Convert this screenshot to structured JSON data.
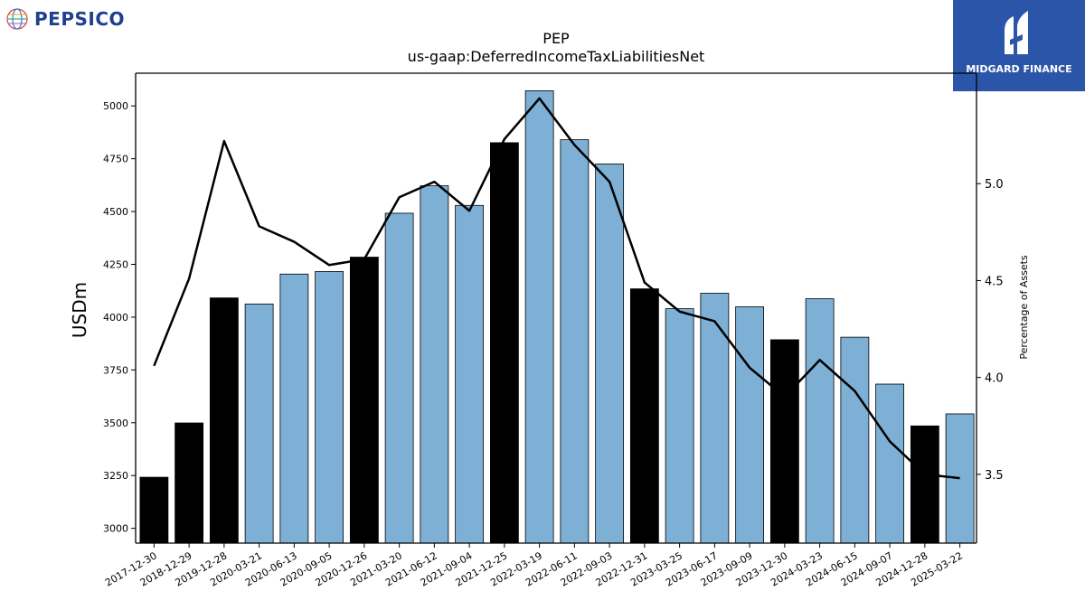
{
  "header": {
    "title": "PEP",
    "subtitle": "us-gaap:DeferredIncomeTaxLiabilitiesNet"
  },
  "brand": {
    "company_logo_text": "PEPSICO",
    "publisher_logo_text": "MIDGARD FINANCE",
    "publisher_color": "#2b55a8",
    "company_color": "#1f3f8f"
  },
  "chart_data": {
    "type": "bar",
    "title": "PEP",
    "subtitle": "us-gaap:DeferredIncomeTaxLiabilitiesNet",
    "ylabel": "USDm",
    "y2label": "Percentage of Assets",
    "ylim": [
      2930,
      5155
    ],
    "y2lim": [
      3.145,
      5.57
    ],
    "yticks": [
      3000,
      3250,
      3500,
      3750,
      4000,
      4250,
      4500,
      4750,
      5000
    ],
    "y2ticks": [
      3.5,
      4.0,
      4.5,
      5.0
    ],
    "grid": false,
    "categories": [
      "2017-12-30",
      "2018-12-29",
      "2019-12-28",
      "2020-03-21",
      "2020-06-13",
      "2020-09-05",
      "2020-12-26",
      "2021-03-20",
      "2021-06-12",
      "2021-09-04",
      "2021-12-25",
      "2022-03-19",
      "2022-06-11",
      "2022-09-03",
      "2022-12-31",
      "2023-03-25",
      "2023-06-17",
      "2023-09-09",
      "2023-12-30",
      "2024-03-23",
      "2024-06-15",
      "2024-09-07",
      "2024-12-28",
      "2025-03-22"
    ],
    "values": [
      3242,
      3499,
      4091,
      4062,
      4204,
      4216,
      4284,
      4492,
      4622,
      4529,
      4826,
      5072,
      4840,
      4725,
      4134,
      4040,
      4113,
      4049,
      3893,
      4087,
      3905,
      3683,
      3485,
      3542
    ],
    "annual": [
      true,
      true,
      true,
      false,
      false,
      false,
      true,
      false,
      false,
      false,
      true,
      false,
      false,
      false,
      true,
      false,
      false,
      false,
      true,
      false,
      false,
      false,
      true,
      false
    ],
    "line_series": {
      "name": "Percentage of Assets",
      "values": [
        4.06,
        4.51,
        5.22,
        4.78,
        4.7,
        4.58,
        4.61,
        4.93,
        5.01,
        4.86,
        5.23,
        5.44,
        5.2,
        5.01,
        4.49,
        4.34,
        4.29,
        4.05,
        3.9,
        4.09,
        3.93,
        3.67,
        3.5,
        3.48
      ]
    },
    "colors": {
      "annual_bar": "#000000",
      "quarterly_bar": "#7eb0d5",
      "bar_edge": "#000000",
      "line": "#000000"
    }
  }
}
